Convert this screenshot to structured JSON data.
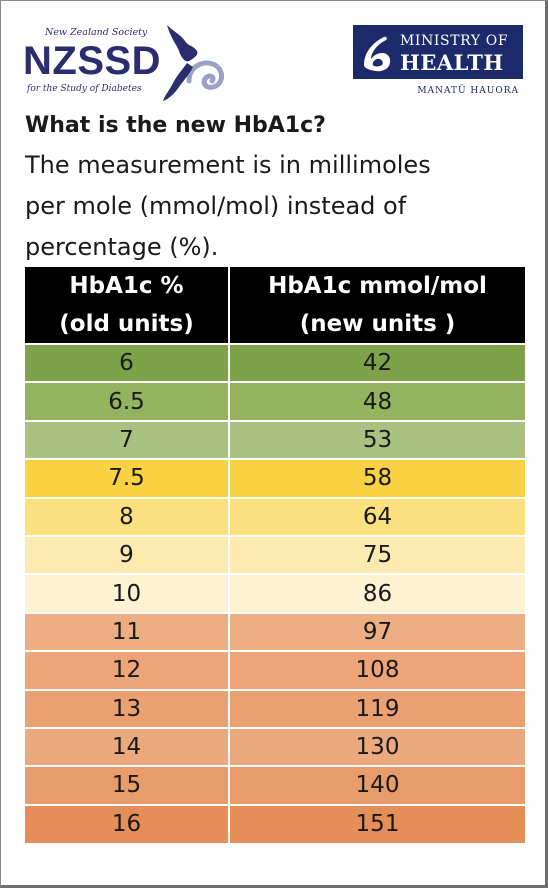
{
  "nzssd_logo": {
    "tagline_top": "New Zealand Society",
    "acronym": "NZSSD",
    "tagline_bottom": "for the Study of Diabetes",
    "color": "#2a2d6e"
  },
  "moh_logo": {
    "line_1": "MINISTRY OF",
    "line_2": "HEALTH",
    "maori": "MANATŪ HAUORA",
    "color": "#1c2a6b"
  },
  "heading": "What is the new HbA1c?",
  "intro_lines": [
    "The measurement is in millimoles",
    "per mole (mmol/mol) instead of",
    "percentage (%)."
  ],
  "table": {
    "columns": [
      {
        "line_1": "HbA1c %",
        "line_2": "(old units)"
      },
      {
        "line_1": "HbA1c mmol/mol",
        "line_2": "(new units )"
      }
    ],
    "rows": [
      {
        "percent": "6",
        "mmol": "42",
        "color": "#7ea24a"
      },
      {
        "percent": "6.5",
        "mmol": "48",
        "color": "#93b35f"
      },
      {
        "percent": "7",
        "mmol": "53",
        "color": "#a9c281"
      },
      {
        "percent": "7.5",
        "mmol": "58",
        "color": "#f9d243"
      },
      {
        "percent": "8",
        "mmol": "64",
        "color": "#fbe07f"
      },
      {
        "percent": "9",
        "mmol": "75",
        "color": "#fdeab0"
      },
      {
        "percent": "10",
        "mmol": "86",
        "color": "#fdf3d3"
      },
      {
        "percent": "11",
        "mmol": "97",
        "color": "#eeae84"
      },
      {
        "percent": "12",
        "mmol": "108",
        "color": "#eca478"
      },
      {
        "percent": "13",
        "mmol": "119",
        "color": "#eba072"
      },
      {
        "percent": "14",
        "mmol": "130",
        "color": "#eba97e"
      },
      {
        "percent": "15",
        "mmol": "140",
        "color": "#e99c6b"
      },
      {
        "percent": "16",
        "mmol": "151",
        "color": "#e58e58"
      }
    ]
  }
}
